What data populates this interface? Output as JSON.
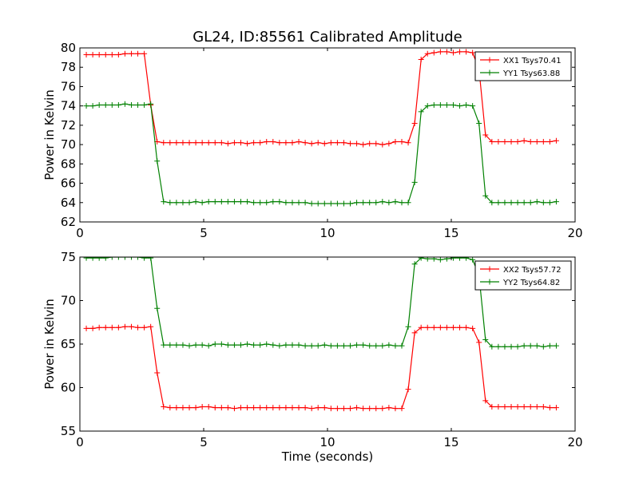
{
  "chart_data": {
    "title": "GL24, ID:85561 Calibrated Amplitude",
    "charts": [
      {
        "type": "line",
        "xlabel": "",
        "ylabel": "Power in Kelvin",
        "xlim": [
          0,
          20
        ],
        "ylim": [
          62,
          80
        ],
        "xticks": [
          "0",
          "5",
          "10",
          "15",
          "20"
        ],
        "yticks": [
          "62",
          "64",
          "66",
          "68",
          "70",
          "72",
          "74",
          "76",
          "78",
          "80"
        ],
        "grid": false,
        "legend_position": "top-right",
        "series": [
          {
            "name": "XX1 Tsys70.41",
            "color": "#ff0000",
            "x": [
              0.26,
              0.52,
              0.78,
              1.04,
              1.3,
              1.56,
              1.82,
              2.08,
              2.34,
              2.6,
              2.86,
              3.12,
              3.38,
              3.64,
              3.9,
              4.16,
              4.42,
              4.68,
              4.94,
              5.2,
              5.46,
              5.72,
              5.98,
              6.24,
              6.5,
              6.76,
              7.02,
              7.28,
              7.54,
              7.8,
              8.06,
              8.32,
              8.58,
              8.84,
              9.1,
              9.36,
              9.62,
              9.88,
              10.14,
              10.4,
              10.66,
              10.92,
              11.18,
              11.44,
              11.7,
              11.96,
              12.22,
              12.48,
              12.74,
              13.0,
              13.26,
              13.52,
              13.78,
              14.04,
              14.3,
              14.56,
              14.82,
              15.08,
              15.34,
              15.6,
              15.86,
              16.12,
              16.38,
              16.64,
              16.9,
              17.16,
              17.42,
              17.68,
              17.94,
              18.2,
              18.46,
              18.72,
              18.98,
              19.24
            ],
            "values": [
              79.3,
              79.3,
              79.3,
              79.3,
              79.3,
              79.3,
              79.4,
              79.4,
              79.4,
              79.4,
              74.1,
              70.3,
              70.2,
              70.2,
              70.2,
              70.2,
              70.2,
              70.2,
              70.2,
              70.2,
              70.2,
              70.2,
              70.1,
              70.2,
              70.2,
              70.1,
              70.2,
              70.2,
              70.3,
              70.3,
              70.2,
              70.2,
              70.2,
              70.3,
              70.2,
              70.1,
              70.2,
              70.1,
              70.2,
              70.2,
              70.2,
              70.1,
              70.1,
              70.0,
              70.1,
              70.1,
              70.0,
              70.1,
              70.3,
              70.3,
              70.2,
              72.2,
              78.8,
              79.4,
              79.5,
              79.6,
              79.6,
              79.5,
              79.6,
              79.6,
              79.5,
              77.8,
              71.0,
              70.3,
              70.3,
              70.3,
              70.3,
              70.3,
              70.4,
              70.3,
              70.3,
              70.3,
              70.3,
              70.4
            ]
          },
          {
            "name": "YY1 Tsys63.88",
            "color": "#008000",
            "x": [
              0.26,
              0.52,
              0.78,
              1.04,
              1.3,
              1.56,
              1.82,
              2.08,
              2.34,
              2.6,
              2.86,
              3.12,
              3.38,
              3.64,
              3.9,
              4.16,
              4.42,
              4.68,
              4.94,
              5.2,
              5.46,
              5.72,
              5.98,
              6.24,
              6.5,
              6.76,
              7.02,
              7.28,
              7.54,
              7.8,
              8.06,
              8.32,
              8.58,
              8.84,
              9.1,
              9.36,
              9.62,
              9.88,
              10.14,
              10.4,
              10.66,
              10.92,
              11.18,
              11.44,
              11.7,
              11.96,
              12.22,
              12.48,
              12.74,
              13.0,
              13.26,
              13.52,
              13.78,
              14.04,
              14.3,
              14.56,
              14.82,
              15.08,
              15.34,
              15.6,
              15.86,
              16.12,
              16.38,
              16.64,
              16.9,
              17.16,
              17.42,
              17.68,
              17.94,
              18.2,
              18.46,
              18.72,
              18.98,
              19.24
            ],
            "values": [
              74.0,
              74.0,
              74.1,
              74.1,
              74.1,
              74.1,
              74.2,
              74.1,
              74.1,
              74.1,
              74.2,
              68.3,
              64.1,
              64.0,
              64.0,
              64.0,
              64.0,
              64.1,
              64.0,
              64.1,
              64.1,
              64.1,
              64.1,
              64.1,
              64.1,
              64.1,
              64.0,
              64.0,
              64.0,
              64.1,
              64.1,
              64.0,
              64.0,
              64.0,
              64.0,
              63.9,
              63.9,
              63.9,
              63.9,
              63.9,
              63.9,
              63.9,
              64.0,
              64.0,
              64.0,
              64.0,
              64.1,
              64.0,
              64.1,
              64.0,
              64.0,
              66.1,
              73.4,
              74.0,
              74.1,
              74.1,
              74.1,
              74.1,
              74.0,
              74.1,
              74.0,
              72.2,
              64.7,
              64.0,
              64.0,
              64.0,
              64.0,
              64.0,
              64.0,
              64.0,
              64.1,
              64.0,
              64.0,
              64.1
            ]
          }
        ]
      },
      {
        "type": "line",
        "xlabel": "Time (seconds)",
        "ylabel": "Power in Kelvin",
        "xlim": [
          0,
          20
        ],
        "ylim": [
          55,
          75
        ],
        "xticks": [
          "0",
          "5",
          "10",
          "15",
          "20"
        ],
        "yticks": [
          "55",
          "60",
          "65",
          "70",
          "75"
        ],
        "grid": false,
        "legend_position": "top-right",
        "series": [
          {
            "name": "XX2 Tsys57.72",
            "color": "#ff0000",
            "x": [
              0.26,
              0.52,
              0.78,
              1.04,
              1.3,
              1.56,
              1.82,
              2.08,
              2.34,
              2.6,
              2.86,
              3.12,
              3.38,
              3.64,
              3.9,
              4.16,
              4.42,
              4.68,
              4.94,
              5.2,
              5.46,
              5.72,
              5.98,
              6.24,
              6.5,
              6.76,
              7.02,
              7.28,
              7.54,
              7.8,
              8.06,
              8.32,
              8.58,
              8.84,
              9.1,
              9.36,
              9.62,
              9.88,
              10.14,
              10.4,
              10.66,
              10.92,
              11.18,
              11.44,
              11.7,
              11.96,
              12.22,
              12.48,
              12.74,
              13.0,
              13.26,
              13.52,
              13.78,
              14.04,
              14.3,
              14.56,
              14.82,
              15.08,
              15.34,
              15.6,
              15.86,
              16.12,
              16.38,
              16.64,
              16.9,
              17.16,
              17.42,
              17.68,
              17.94,
              18.2,
              18.46,
              18.72,
              18.98,
              19.24
            ],
            "values": [
              66.8,
              66.8,
              66.9,
              66.9,
              66.9,
              66.9,
              67.0,
              67.0,
              66.9,
              66.9,
              67.0,
              61.7,
              57.8,
              57.7,
              57.7,
              57.7,
              57.7,
              57.7,
              57.8,
              57.8,
              57.7,
              57.7,
              57.7,
              57.6,
              57.7,
              57.7,
              57.7,
              57.7,
              57.7,
              57.7,
              57.7,
              57.7,
              57.7,
              57.7,
              57.7,
              57.6,
              57.7,
              57.7,
              57.6,
              57.6,
              57.6,
              57.6,
              57.7,
              57.6,
              57.6,
              57.6,
              57.6,
              57.7,
              57.6,
              57.6,
              59.8,
              66.3,
              66.9,
              66.9,
              66.9,
              66.9,
              66.9,
              66.9,
              66.9,
              66.9,
              66.8,
              65.2,
              58.5,
              57.8,
              57.8,
              57.8,
              57.8,
              57.8,
              57.8,
              57.8,
              57.8,
              57.8,
              57.7,
              57.7
            ]
          },
          {
            "name": "YY2 Tsys64.82",
            "color": "#008000",
            "x": [
              0.26,
              0.52,
              0.78,
              1.04,
              1.3,
              1.56,
              1.82,
              2.08,
              2.34,
              2.6,
              2.86,
              3.12,
              3.38,
              3.64,
              3.9,
              4.16,
              4.42,
              4.68,
              4.94,
              5.2,
              5.46,
              5.72,
              5.98,
              6.24,
              6.5,
              6.76,
              7.02,
              7.28,
              7.54,
              7.8,
              8.06,
              8.32,
              8.58,
              8.84,
              9.1,
              9.36,
              9.62,
              9.88,
              10.14,
              10.4,
              10.66,
              10.92,
              11.18,
              11.44,
              11.7,
              11.96,
              12.22,
              12.48,
              12.74,
              13.0,
              13.26,
              13.52,
              13.78,
              14.04,
              14.3,
              14.56,
              14.82,
              15.08,
              15.34,
              15.6,
              15.86,
              16.12,
              16.38,
              16.64,
              16.9,
              17.16,
              17.42,
              17.68,
              17.94,
              18.2,
              18.46,
              18.72,
              18.98,
              19.24
            ],
            "values": [
              74.9,
              74.9,
              74.9,
              74.9,
              75.0,
              75.0,
              75.0,
              75.0,
              75.0,
              74.9,
              74.9,
              69.1,
              64.9,
              64.9,
              64.9,
              64.9,
              64.8,
              64.9,
              64.9,
              64.8,
              65.0,
              65.0,
              64.9,
              64.9,
              64.9,
              65.0,
              64.9,
              64.9,
              65.0,
              64.9,
              64.8,
              64.9,
              64.9,
              64.9,
              64.8,
              64.8,
              64.8,
              64.9,
              64.8,
              64.8,
              64.8,
              64.8,
              64.9,
              64.9,
              64.8,
              64.8,
              64.8,
              64.9,
              64.8,
              64.8,
              67.0,
              74.2,
              74.9,
              74.8,
              74.8,
              74.7,
              74.8,
              74.9,
              74.9,
              74.9,
              74.7,
              72.9,
              65.5,
              64.7,
              64.7,
              64.7,
              64.7,
              64.7,
              64.8,
              64.8,
              64.8,
              64.7,
              64.8,
              64.8
            ]
          }
        ]
      }
    ]
  }
}
